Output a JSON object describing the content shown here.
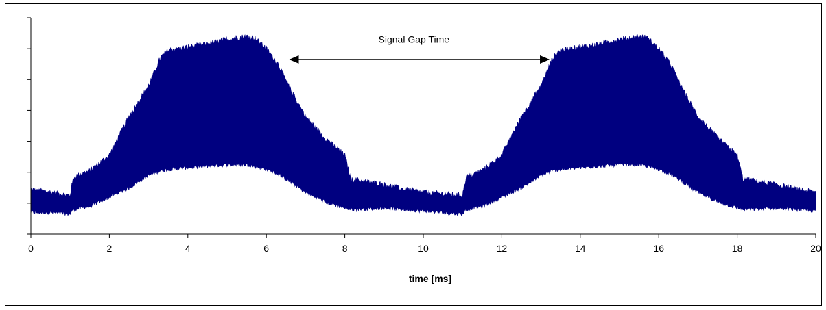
{
  "chart_data": {
    "type": "area",
    "title": "",
    "xlabel": "time [ms]",
    "ylabel": "",
    "xlim": [
      0,
      20
    ],
    "ylim": [
      0,
      7
    ],
    "x_ticks": [
      "0",
      "2",
      "4",
      "6",
      "8",
      "10",
      "12",
      "14",
      "16",
      "18",
      "20"
    ],
    "y_tick_count": 8,
    "y_tick_labels_shown": false,
    "grid": false,
    "legend": "none",
    "series_color": "#000080",
    "series": [
      {
        "x": [
          0,
          0.5,
          1.0,
          1.05,
          1.1,
          1.5,
          2.0,
          2.5,
          3.0,
          3.3,
          3.5,
          4.0,
          4.5,
          5.0,
          5.5,
          5.7,
          6.0,
          6.3,
          6.6,
          7.0,
          7.5,
          8.0,
          8.15,
          8.3,
          9.0,
          9.5,
          10.0,
          10.5,
          11.0,
          11.05,
          11.1,
          11.5,
          12.0,
          12.5,
          13.0,
          13.3,
          13.5,
          14.0,
          14.5,
          15.0,
          15.5,
          15.7,
          16.0,
          16.3,
          16.6,
          17.0,
          17.5,
          18.0,
          18.15,
          18.3,
          19.0,
          19.5,
          20.0
        ],
        "upper": [
          1.45,
          1.35,
          1.25,
          1.6,
          1.85,
          2.05,
          2.55,
          3.8,
          4.8,
          5.7,
          5.95,
          6.05,
          6.15,
          6.3,
          6.4,
          6.35,
          6.0,
          5.5,
          4.7,
          3.8,
          3.1,
          2.55,
          1.75,
          1.75,
          1.6,
          1.45,
          1.35,
          1.3,
          1.25,
          1.6,
          1.85,
          2.05,
          2.55,
          3.8,
          4.8,
          5.7,
          5.95,
          6.05,
          6.15,
          6.3,
          6.4,
          6.35,
          6.0,
          5.5,
          4.7,
          3.8,
          3.1,
          2.55,
          1.75,
          1.75,
          1.6,
          1.45,
          1.35
        ],
        "lower": [
          0.7,
          0.7,
          0.65,
          0.75,
          0.8,
          0.9,
          1.2,
          1.5,
          1.9,
          2.05,
          2.1,
          2.15,
          2.2,
          2.25,
          2.25,
          2.2,
          2.1,
          1.95,
          1.7,
          1.35,
          1.05,
          0.85,
          0.8,
          0.8,
          0.85,
          0.8,
          0.75,
          0.7,
          0.65,
          0.75,
          0.8,
          0.9,
          1.2,
          1.5,
          1.9,
          2.05,
          2.1,
          2.15,
          2.2,
          2.25,
          2.25,
          2.2,
          2.1,
          1.95,
          1.7,
          1.35,
          1.05,
          0.85,
          0.8,
          0.8,
          0.85,
          0.8,
          0.75
        ]
      }
    ],
    "annotations": [
      {
        "text": "Signal Gap Time",
        "x_start": 6.6,
        "x_end": 13.2,
        "y": 5.65,
        "text_y": 6.3
      }
    ]
  }
}
